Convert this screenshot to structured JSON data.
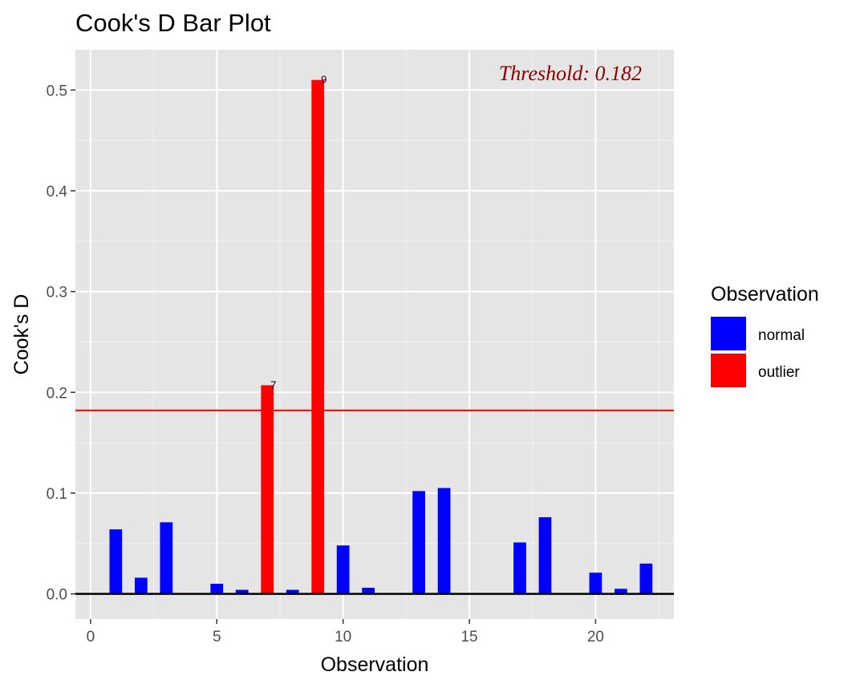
{
  "chart_data": {
    "type": "bar",
    "title": "Cook's D Bar Plot",
    "xlabel": "Observation",
    "ylabel": "Cook's D",
    "xlim": [
      -0.6,
      23.1
    ],
    "ylim": [
      -0.025,
      0.54
    ],
    "x_ticks": [
      "0",
      "5",
      "10",
      "15",
      "20"
    ],
    "x_tick_values": [
      0,
      5,
      10,
      15,
      20
    ],
    "y_ticks": [
      "0.0",
      "0.1",
      "0.2",
      "0.3",
      "0.4",
      "0.5"
    ],
    "y_tick_values": [
      0,
      0.1,
      0.2,
      0.3,
      0.4,
      0.5
    ],
    "grid": true,
    "threshold": {
      "value": 0.182,
      "label": "Threshold: 0.182",
      "color": "#ff0000",
      "text_color": "#8b0000"
    },
    "legend": {
      "title": "Observation",
      "position": "right",
      "entries": [
        {
          "label": "normal",
          "color": "#0000ff"
        },
        {
          "label": "outlier",
          "color": "#ff0000"
        }
      ]
    },
    "bars": [
      {
        "x": 1,
        "value": 0.064,
        "group": "normal"
      },
      {
        "x": 2,
        "value": 0.016,
        "group": "normal"
      },
      {
        "x": 3,
        "value": 0.071,
        "group": "normal"
      },
      {
        "x": 4,
        "value": 0.0003,
        "group": "normal"
      },
      {
        "x": 5,
        "value": 0.01,
        "group": "normal"
      },
      {
        "x": 6,
        "value": 0.004,
        "group": "normal"
      },
      {
        "x": 7,
        "value": 0.207,
        "group": "outlier",
        "label": "7"
      },
      {
        "x": 8,
        "value": 0.004,
        "group": "normal"
      },
      {
        "x": 9,
        "value": 0.51,
        "group": "outlier",
        "label": "9"
      },
      {
        "x": 10,
        "value": 0.048,
        "group": "normal"
      },
      {
        "x": 11,
        "value": 0.006,
        "group": "normal"
      },
      {
        "x": 12,
        "value": 0.0003,
        "group": "normal"
      },
      {
        "x": 13,
        "value": 0.102,
        "group": "normal"
      },
      {
        "x": 14,
        "value": 0.105,
        "group": "normal"
      },
      {
        "x": 15,
        "value": 0.0008,
        "group": "normal"
      },
      {
        "x": 16,
        "value": 0.0003,
        "group": "normal"
      },
      {
        "x": 17,
        "value": 0.051,
        "group": "normal"
      },
      {
        "x": 18,
        "value": 0.076,
        "group": "normal"
      },
      {
        "x": 19,
        "value": 0.0008,
        "group": "normal"
      },
      {
        "x": 20,
        "value": 0.021,
        "group": "normal"
      },
      {
        "x": 21,
        "value": 0.005,
        "group": "normal"
      },
      {
        "x": 22,
        "value": 0.03,
        "group": "normal"
      }
    ]
  }
}
